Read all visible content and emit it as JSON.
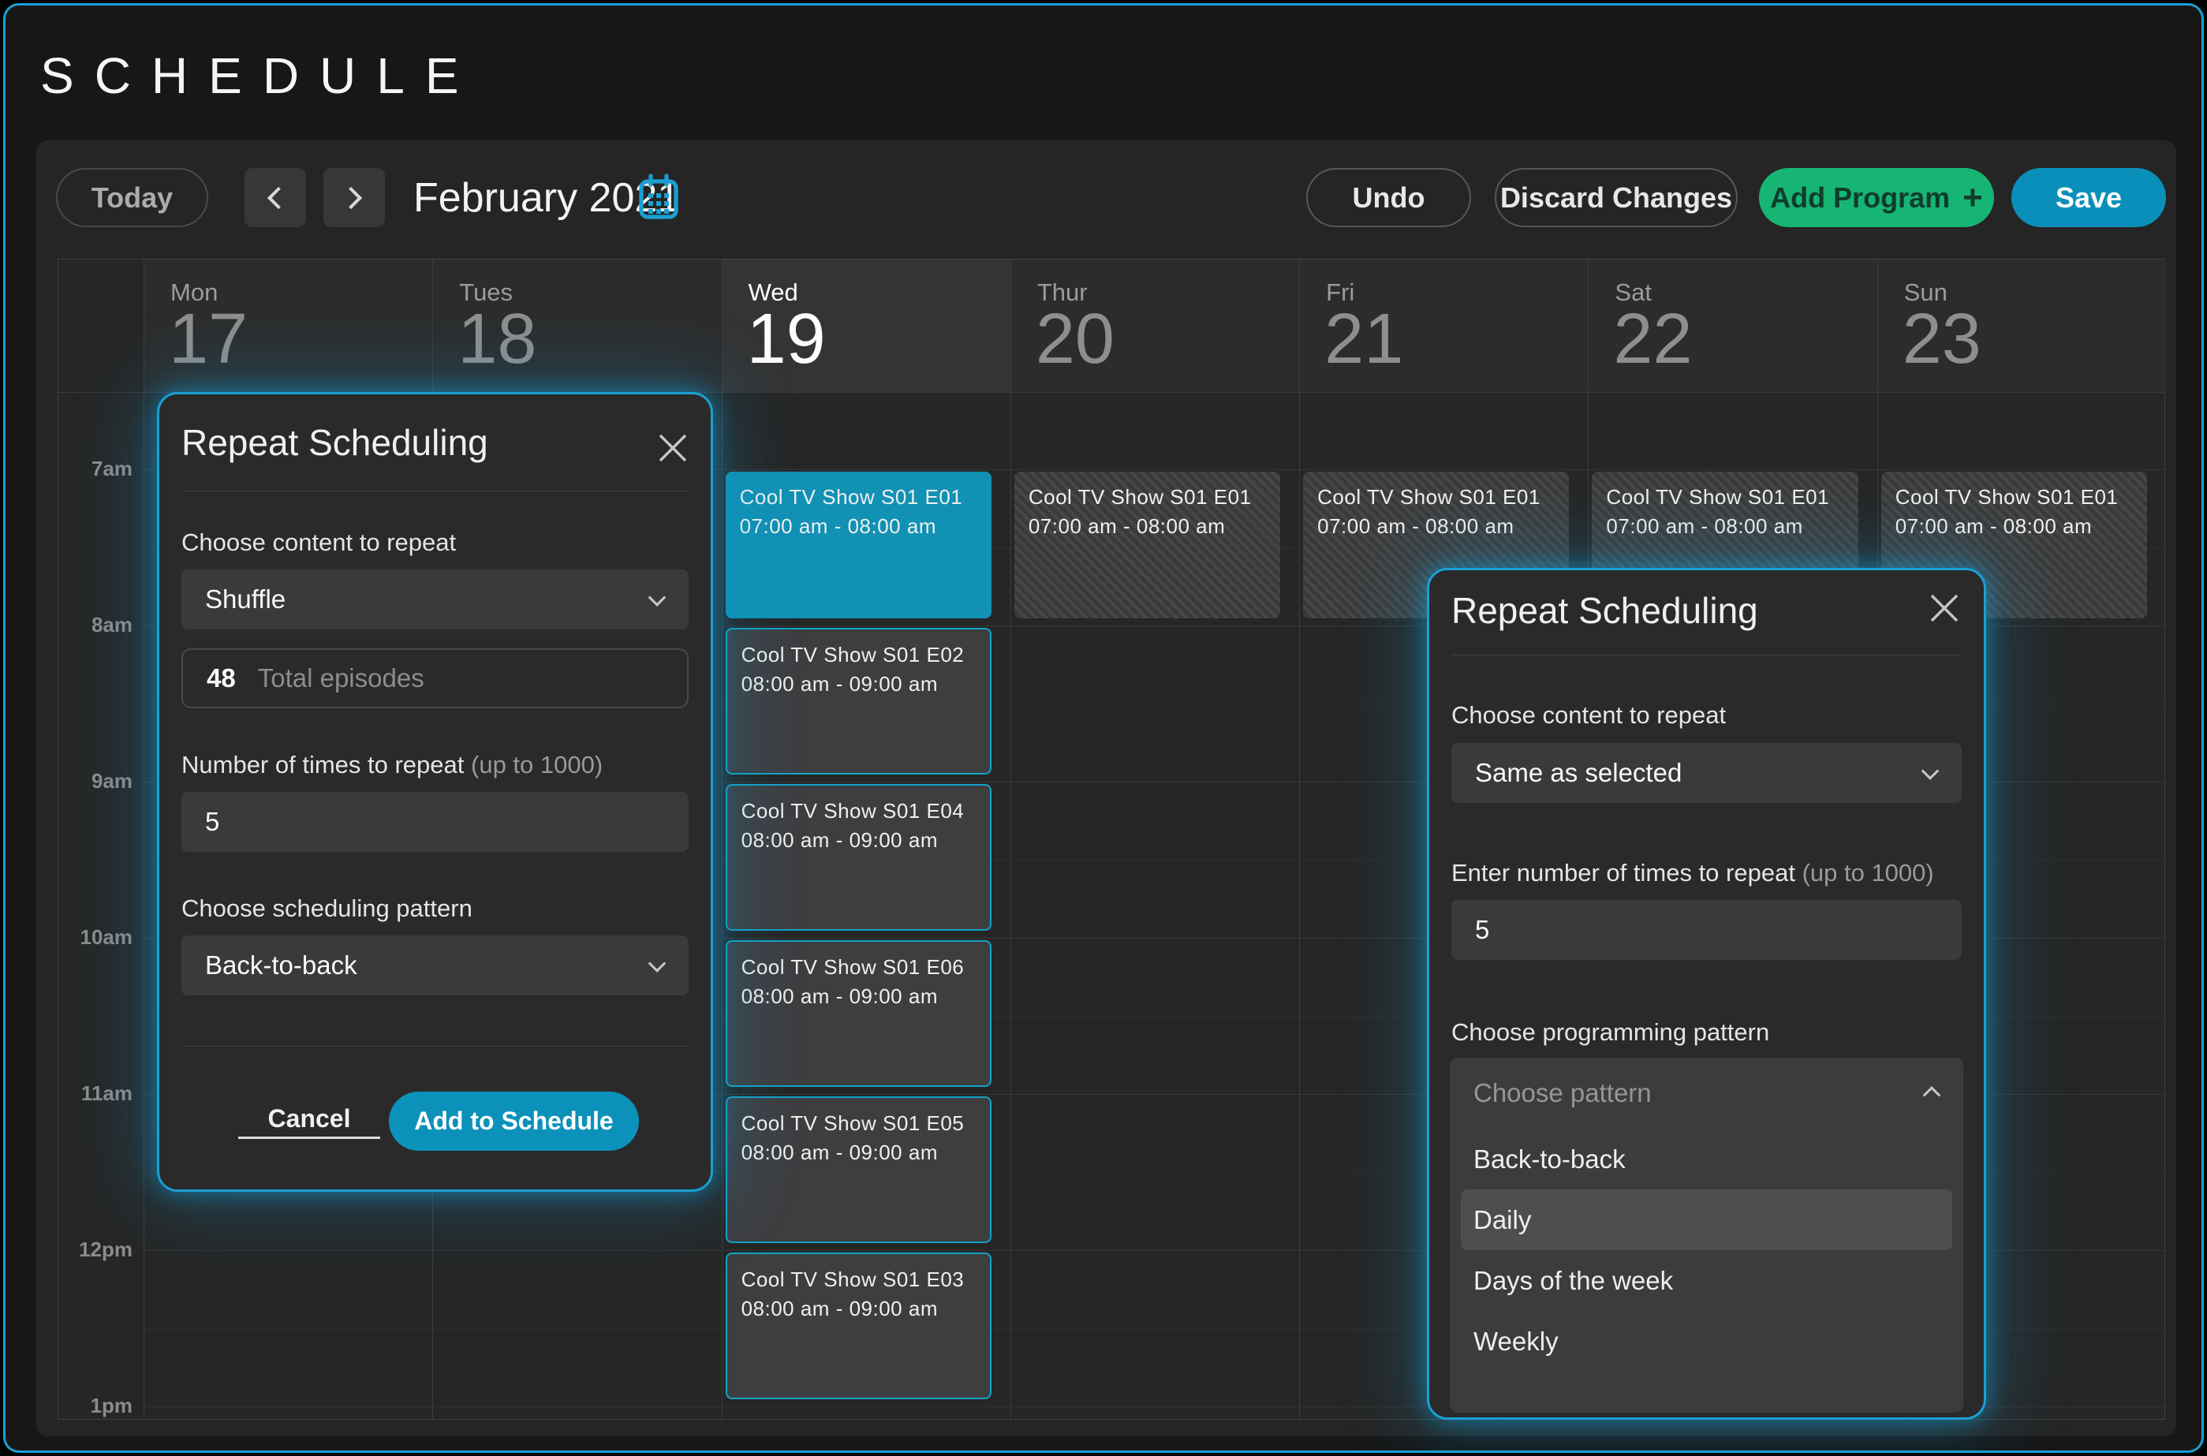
{
  "app": {
    "title": "SCHEDULE"
  },
  "colors": {
    "accent": "#1a9fd4",
    "selected_event": "#1191b4",
    "event_border": "#14a2c8",
    "save_blue": "#0a8fba",
    "add_green": "#17b573"
  },
  "toolbar": {
    "today": "Today",
    "month": "February 2021",
    "undo": "Undo",
    "discard": "Discard Changes",
    "add_program": "Add Program",
    "add_program_plus": "+",
    "save": "Save"
  },
  "icons": {
    "calendar": "calendar-icon",
    "prev": "chevron-left-icon",
    "next": "chevron-right-icon",
    "close": "close-icon",
    "chevron_down": "chevron-down-icon",
    "chevron_up": "chevron-up-icon",
    "plus": "plus-icon"
  },
  "calendar": {
    "times": [
      "7am",
      "8am",
      "9am",
      "10am",
      "11am",
      "12pm",
      "1pm"
    ],
    "days": [
      {
        "name": "Mon",
        "date": "17",
        "current": false
      },
      {
        "name": "Tues",
        "date": "18",
        "current": false
      },
      {
        "name": "Wed",
        "date": "19",
        "current": true
      },
      {
        "name": "Thur",
        "date": "20",
        "current": false
      },
      {
        "name": "Fri",
        "date": "21",
        "current": false
      },
      {
        "name": "Sat",
        "date": "22",
        "current": false
      },
      {
        "name": "Sun",
        "date": "23",
        "current": false
      }
    ],
    "events": [
      {
        "day": 2,
        "slot": 0,
        "style": "selected",
        "title": "Cool TV Show S01 E01",
        "time": "07:00 am - 08:00 am"
      },
      {
        "day": 2,
        "slot": 1,
        "style": "outlined",
        "title": "Cool TV Show S01 E02",
        "time": "08:00 am - 09:00 am"
      },
      {
        "day": 2,
        "slot": 2,
        "style": "outlined",
        "title": "Cool TV Show S01 E04",
        "time": "08:00 am - 09:00 am"
      },
      {
        "day": 2,
        "slot": 3,
        "style": "outlined",
        "title": "Cool TV Show S01 E06",
        "time": "08:00 am - 09:00 am"
      },
      {
        "day": 2,
        "slot": 4,
        "style": "outlined",
        "title": "Cool TV Show S01 E05",
        "time": "08:00 am - 09:00 am"
      },
      {
        "day": 2,
        "slot": 5,
        "style": "outlined",
        "title": "Cool TV Show S01 E03",
        "time": "08:00 am - 09:00 am"
      },
      {
        "day": 3,
        "slot": 0,
        "style": "hatched",
        "title": "Cool TV Show S01 E01",
        "time": "07:00 am - 08:00 am"
      },
      {
        "day": 4,
        "slot": 0,
        "style": "hatched",
        "title": "Cool TV Show S01 E01",
        "time": "07:00 am - 08:00 am"
      },
      {
        "day": 5,
        "slot": 0,
        "style": "hatched",
        "title": "Cool TV Show S01 E01",
        "time": "07:00 am - 08:00 am"
      },
      {
        "day": 6,
        "slot": 0,
        "style": "hatched",
        "title": "Cool TV Show S01 E01",
        "time": "07:00 am - 08:00 am"
      }
    ]
  },
  "modal_left": {
    "title": "Repeat Scheduling",
    "content_label": "Choose content to repeat",
    "content_value": "Shuffle",
    "episodes_value": "48",
    "episodes_placeholder": "Total episodes",
    "repeat_label": "Number of times to repeat",
    "repeat_hint": "(up to 1000)",
    "repeat_value": "5",
    "pattern_label": "Choose scheduling pattern",
    "pattern_value": "Back-to-back",
    "cancel": "Cancel",
    "submit": "Add to Schedule"
  },
  "modal_right": {
    "title": "Repeat Scheduling",
    "content_label": "Choose content to repeat",
    "content_value": "Same as selected",
    "repeat_label": "Enter number of times to repeat",
    "repeat_hint": "(up to 1000)",
    "repeat_value": "5",
    "pattern_label": "Choose programming pattern",
    "pattern_placeholder": "Choose pattern",
    "pattern_options": [
      "Back-to-back",
      "Daily",
      "Days of the week",
      "Weekly"
    ],
    "pattern_selected": "Daily"
  }
}
